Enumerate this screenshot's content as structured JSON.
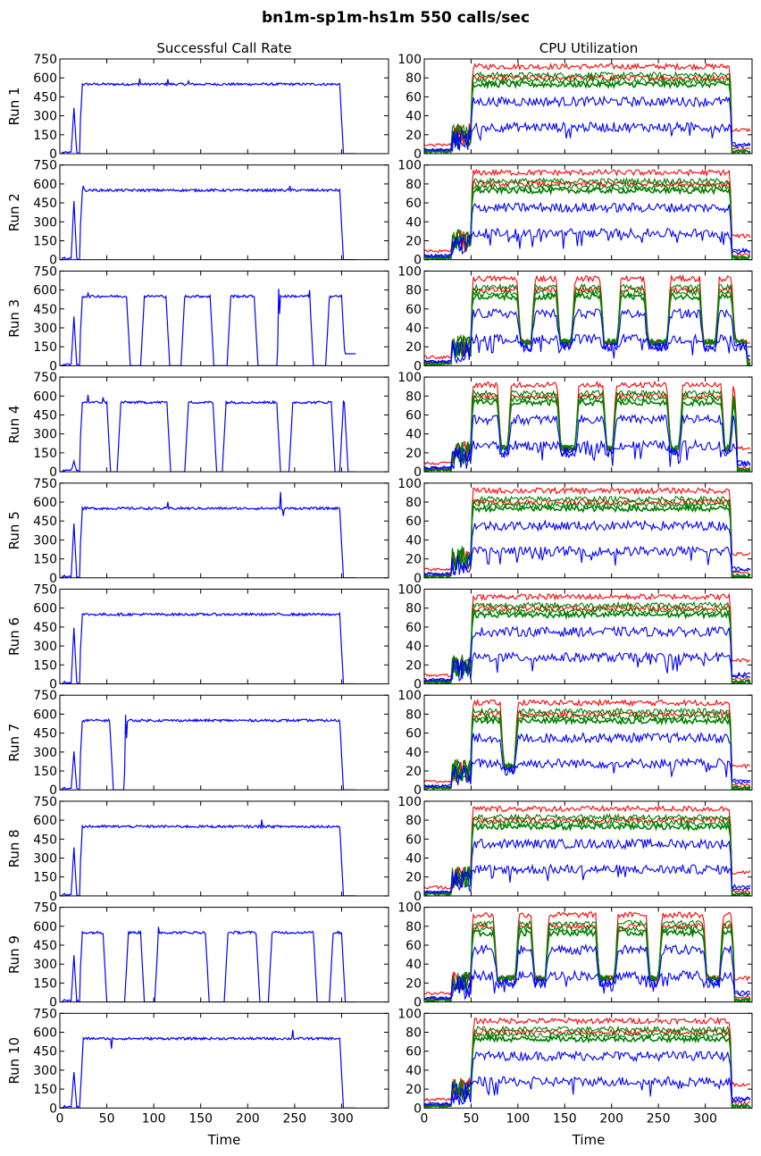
{
  "figure": {
    "title": "bn1m-sp1m-hs1m 550 calls/sec"
  },
  "chart_data": {
    "type": "line",
    "title": "bn1m-sp1m-hs1m 550 calls/sec",
    "columns": [
      {
        "title": "Successful Call Rate",
        "xlabel": "Time",
        "xlim": [
          0,
          350
        ],
        "xticks": [
          0,
          50,
          100,
          150,
          200,
          250,
          300
        ],
        "ylim": [
          0,
          750
        ],
        "yticks": [
          0,
          150,
          300,
          450,
          600,
          750
        ],
        "series_color": "#0000ff"
      },
      {
        "title": "CPU Utilization",
        "xlabel": "Time",
        "xlim": [
          0,
          350
        ],
        "xticks": [
          0,
          50,
          100,
          150,
          200,
          250,
          300
        ],
        "ylim": [
          0,
          100
        ],
        "yticks": [
          0,
          20,
          40,
          60,
          80,
          100
        ],
        "series_colors": [
          "#ff0000",
          "#ff0000",
          "#008000",
          "#008000",
          "#008000",
          "#0000ff",
          "#0000ff"
        ],
        "steady_levels": [
          92,
          80,
          83,
          77,
          73,
          55,
          28
        ],
        "idle_level": [
          25,
          5,
          2,
          2,
          2,
          10,
          8
        ]
      }
    ],
    "runs": [
      {
        "label": "Run 1",
        "spikes": [
          [
            5,
            12
          ],
          [
            15,
            362
          ]
        ],
        "on": [
          [
            22,
            300
          ]
        ],
        "end": 300,
        "outliers": [
          [
            85,
            595
          ],
          [
            115,
            590
          ],
          [
            137,
            575
          ]
        ]
      },
      {
        "label": "Run 2",
        "spikes": [
          [
            5,
            20
          ],
          [
            15,
            465
          ]
        ],
        "on": [
          [
            22,
            300
          ]
        ],
        "end": 300,
        "outliers": [
          [
            25,
            585
          ],
          [
            245,
            585
          ]
        ]
      },
      {
        "label": "Run 3",
        "spikes": [
          [
            5,
            15
          ],
          [
            15,
            390
          ]
        ],
        "on": [
          [
            22,
            73
          ],
          [
            88,
            115
          ],
          [
            131,
            162
          ],
          [
            180,
            209
          ],
          [
            233,
            268
          ],
          [
            285,
            302
          ]
        ],
        "end": 316,
        "outliers": [
          [
            30,
            575
          ],
          [
            233,
            610
          ],
          [
            266,
            600
          ]
        ],
        "small": [
          [
            300,
            316,
            95
          ]
        ]
      },
      {
        "label": "Run 4",
        "spikes": [
          [
            5,
            15
          ],
          [
            15,
            85
          ]
        ],
        "on": [
          [
            22,
            52
          ],
          [
            63,
            116
          ],
          [
            135,
            165
          ],
          [
            175,
            233
          ],
          [
            246,
            291
          ],
          [
            300,
            305
          ]
        ],
        "end": 305,
        "outliers": [
          [
            30,
            610
          ],
          [
            46,
            590
          ]
        ]
      },
      {
        "label": "Run 5",
        "spikes": [
          [
            5,
            20
          ],
          [
            15,
            430
          ]
        ],
        "on": [
          [
            22,
            300
          ]
        ],
        "end": 300,
        "outliers": [
          [
            115,
            600
          ],
          [
            235,
            680
          ],
          [
            238,
            490
          ]
        ]
      },
      {
        "label": "Run 6",
        "spikes": [
          [
            5,
            20
          ],
          [
            15,
            445
          ]
        ],
        "on": [
          [
            22,
            300
          ]
        ],
        "end": 300,
        "outliers": []
      },
      {
        "label": "Run 7",
        "spikes": [
          [
            5,
            20
          ],
          [
            15,
            305
          ]
        ],
        "on": [
          [
            22,
            55
          ],
          [
            70,
            300
          ]
        ],
        "end": 300,
        "outliers": [
          [
            70,
            595
          ]
        ]
      },
      {
        "label": "Run 8",
        "spikes": [
          [
            5,
            20
          ],
          [
            15,
            385
          ]
        ],
        "on": [
          [
            22,
            300
          ]
        ],
        "end": 300,
        "outliers": [
          [
            215,
            605
          ]
        ]
      },
      {
        "label": "Run 9",
        "spikes": [
          [
            5,
            20
          ],
          [
            15,
            370
          ]
        ],
        "on": [
          [
            22,
            48
          ],
          [
            71,
            88
          ],
          [
            103,
            157
          ],
          [
            177,
            211
          ],
          [
            224,
            272
          ],
          [
            289,
            302
          ]
        ],
        "end": 302,
        "outliers": [
          [
            105,
            595
          ]
        ]
      },
      {
        "label": "Run 10",
        "spikes": [
          [
            5,
            20
          ],
          [
            15,
            285
          ]
        ],
        "on": [
          [
            23,
            300
          ]
        ],
        "end": 300,
        "outliers": [
          [
            55,
            640
          ],
          [
            55,
            470
          ],
          [
            248,
            620
          ]
        ]
      }
    ]
  }
}
